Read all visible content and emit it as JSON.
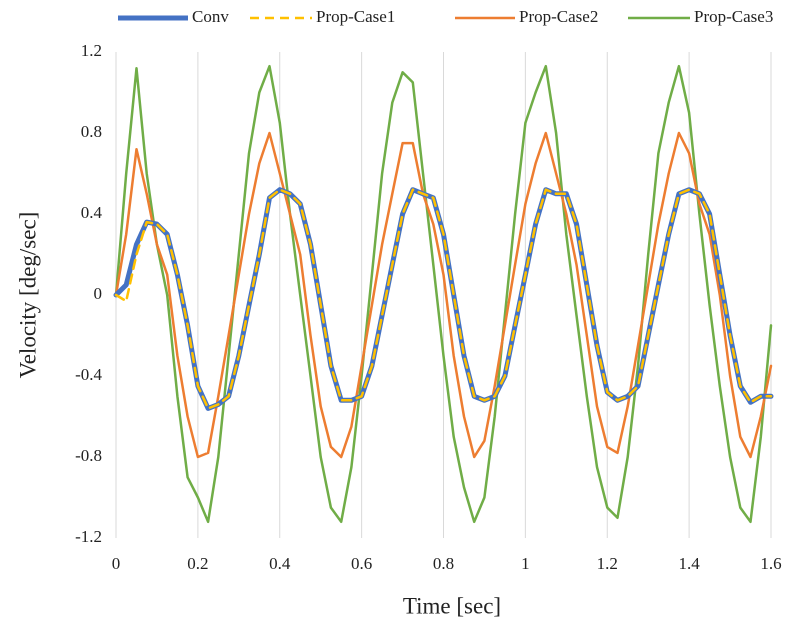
{
  "chart_data": {
    "type": "line",
    "xlabel": "Time [sec]",
    "ylabel": "Velocity [deg/sec]",
    "legend": "top",
    "grid": "x",
    "xlim": [
      0,
      1.6
    ],
    "xticks": [
      0,
      0.2,
      0.4,
      0.6,
      0.8,
      1,
      1.2,
      1.4,
      1.6
    ],
    "ylim": [
      -1.2,
      1.2
    ],
    "yticks": [
      -1.2,
      -0.8,
      -0.4,
      0,
      0.4,
      0.8,
      1.2
    ],
    "x": [
      0,
      0.025,
      0.05,
      0.075,
      0.1,
      0.125,
      0.15,
      0.175,
      0.2,
      0.225,
      0.25,
      0.275,
      0.3,
      0.325,
      0.35,
      0.375,
      0.4,
      0.425,
      0.45,
      0.475,
      0.5,
      0.525,
      0.55,
      0.575,
      0.6,
      0.625,
      0.65,
      0.675,
      0.7,
      0.725,
      0.75,
      0.775,
      0.8,
      0.825,
      0.85,
      0.875,
      0.9,
      0.925,
      0.95,
      0.975,
      1.0,
      1.025,
      1.05,
      1.075,
      1.1,
      1.125,
      1.15,
      1.175,
      1.2,
      1.225,
      1.25,
      1.275,
      1.3,
      1.325,
      1.35,
      1.375,
      1.4,
      1.425,
      1.45,
      1.475,
      1.5,
      1.525,
      1.55,
      1.575,
      1.6
    ],
    "series": [
      {
        "name": "Conv",
        "color": "#4472c4",
        "width": 5,
        "dash": false,
        "values": [
          0,
          0.05,
          0.25,
          0.36,
          0.35,
          0.3,
          0.1,
          -0.15,
          -0.45,
          -0.56,
          -0.54,
          -0.5,
          -0.3,
          -0.05,
          0.2,
          0.48,
          0.52,
          0.5,
          0.45,
          0.25,
          -0.05,
          -0.35,
          -0.52,
          -0.52,
          -0.5,
          -0.35,
          -0.1,
          0.15,
          0.4,
          0.52,
          0.5,
          0.48,
          0.3,
          0.0,
          -0.3,
          -0.5,
          -0.52,
          -0.5,
          -0.4,
          -0.15,
          0.1,
          0.35,
          0.52,
          0.5,
          0.5,
          0.35,
          0.05,
          -0.25,
          -0.48,
          -0.52,
          -0.5,
          -0.45,
          -0.2,
          0.05,
          0.3,
          0.5,
          0.52,
          0.5,
          0.4,
          0.1,
          -0.2,
          -0.45,
          -0.53,
          -0.5,
          -0.5
        ]
      },
      {
        "name": "Prop-Case1",
        "color": "#ffc000",
        "width": 2.5,
        "dash": true,
        "values": [
          0,
          -0.03,
          0.2,
          0.36,
          0.35,
          0.3,
          0.1,
          -0.15,
          -0.45,
          -0.56,
          -0.54,
          -0.5,
          -0.3,
          -0.05,
          0.2,
          0.48,
          0.52,
          0.5,
          0.45,
          0.25,
          -0.05,
          -0.35,
          -0.52,
          -0.52,
          -0.5,
          -0.35,
          -0.1,
          0.15,
          0.4,
          0.52,
          0.5,
          0.48,
          0.3,
          0.0,
          -0.3,
          -0.5,
          -0.52,
          -0.5,
          -0.4,
          -0.15,
          0.1,
          0.35,
          0.52,
          0.5,
          0.5,
          0.35,
          0.05,
          -0.25,
          -0.48,
          -0.52,
          -0.5,
          -0.45,
          -0.2,
          0.05,
          0.3,
          0.5,
          0.52,
          0.5,
          0.4,
          0.1,
          -0.2,
          -0.45,
          -0.53,
          -0.5,
          -0.5
        ]
      },
      {
        "name": "Prop-Case2",
        "color": "#ed7d31",
        "width": 2.5,
        "dash": false,
        "values": [
          0,
          0.3,
          0.72,
          0.5,
          0.25,
          0.1,
          -0.3,
          -0.6,
          -0.8,
          -0.78,
          -0.5,
          -0.2,
          0.1,
          0.4,
          0.65,
          0.8,
          0.6,
          0.4,
          0.2,
          -0.2,
          -0.55,
          -0.75,
          -0.8,
          -0.65,
          -0.35,
          -0.05,
          0.25,
          0.5,
          0.75,
          0.75,
          0.5,
          0.35,
          0.1,
          -0.3,
          -0.6,
          -0.8,
          -0.72,
          -0.45,
          -0.15,
          0.15,
          0.45,
          0.65,
          0.8,
          0.6,
          0.4,
          0.15,
          -0.2,
          -0.55,
          -0.75,
          -0.78,
          -0.55,
          -0.25,
          0.05,
          0.35,
          0.6,
          0.8,
          0.7,
          0.45,
          0.3,
          0.0,
          -0.4,
          -0.7,
          -0.8,
          -0.6,
          -0.35
        ]
      },
      {
        "name": "Prop-Case3",
        "color": "#70ad47",
        "width": 2.5,
        "dash": false,
        "values": [
          0,
          0.6,
          1.12,
          0.6,
          0.25,
          0.0,
          -0.5,
          -0.9,
          -1.0,
          -1.12,
          -0.8,
          -0.3,
          0.2,
          0.7,
          1.0,
          1.13,
          0.85,
          0.4,
          0.0,
          -0.4,
          -0.8,
          -1.05,
          -1.12,
          -0.85,
          -0.4,
          0.1,
          0.6,
          0.95,
          1.1,
          1.05,
          0.6,
          0.15,
          -0.3,
          -0.7,
          -0.95,
          -1.12,
          -1.0,
          -0.6,
          -0.1,
          0.4,
          0.85,
          1.0,
          1.13,
          0.8,
          0.3,
          -0.1,
          -0.5,
          -0.85,
          -1.05,
          -1.1,
          -0.8,
          -0.35,
          0.2,
          0.7,
          0.95,
          1.13,
          0.9,
          0.4,
          -0.05,
          -0.45,
          -0.8,
          -1.05,
          -1.12,
          -0.7,
          -0.15
        ]
      }
    ]
  }
}
